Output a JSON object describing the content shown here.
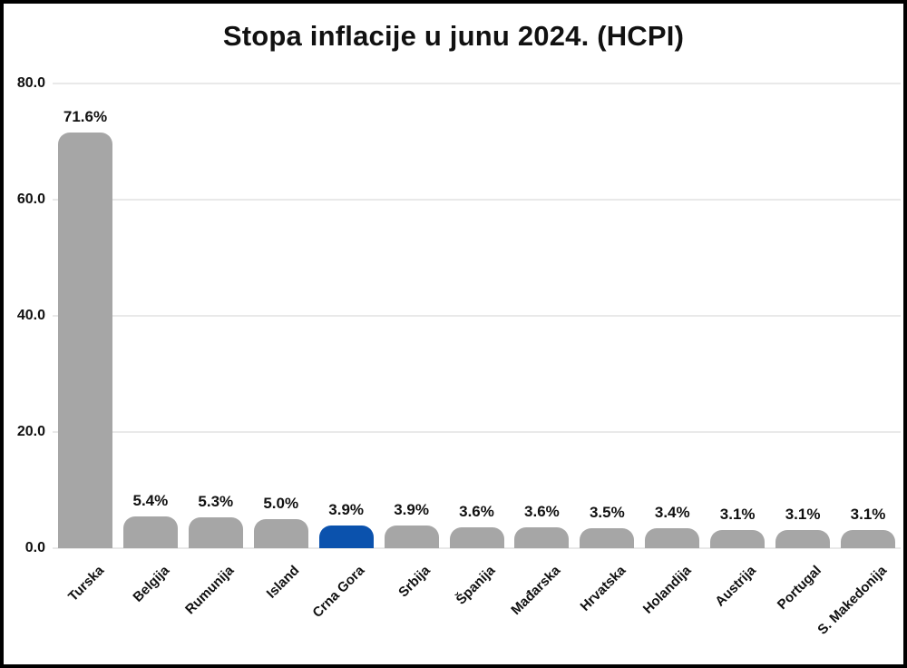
{
  "frame": {
    "background_color": "#ffffff",
    "border_color": "#000000"
  },
  "chart_data": {
    "type": "bar",
    "title": "Stopa inflacije u junu 2024. (HCPI)",
    "xlabel": "",
    "ylabel": "",
    "legend": "none",
    "grid": "horizontal",
    "ylim": [
      0,
      80
    ],
    "y_ticks": [
      {
        "value": 0,
        "label": "0.0"
      },
      {
        "value": 20,
        "label": "20.0"
      },
      {
        "value": 40,
        "label": "40.0"
      },
      {
        "value": 60,
        "label": "60.0"
      },
      {
        "value": 80,
        "label": "80.0"
      }
    ],
    "categories": [
      "Turska",
      "Belgija",
      "Rumunija",
      "Island",
      "Crna Gora",
      "Srbija",
      "Španija",
      "Mađarska",
      "Hrvatska",
      "Holandija",
      "Austrija",
      "Portugal",
      "S. Makedonija"
    ],
    "values": [
      71.6,
      5.4,
      5.3,
      5.0,
      3.9,
      3.9,
      3.6,
      3.6,
      3.5,
      3.4,
      3.1,
      3.1,
      3.1
    ],
    "value_labels": [
      "71.6%",
      "5.4%",
      "5.3%",
      "5.0%",
      "3.9%",
      "3.9%",
      "3.6%",
      "3.6%",
      "3.5%",
      "3.4%",
      "3.1%",
      "3.1%",
      "3.1%"
    ],
    "highlighted_category": "Crna Gora",
    "colors": {
      "bar": "#a6a6a6",
      "highlight": "#0b52ad",
      "gridline": "#e9e9e9",
      "text": "#111111"
    }
  }
}
